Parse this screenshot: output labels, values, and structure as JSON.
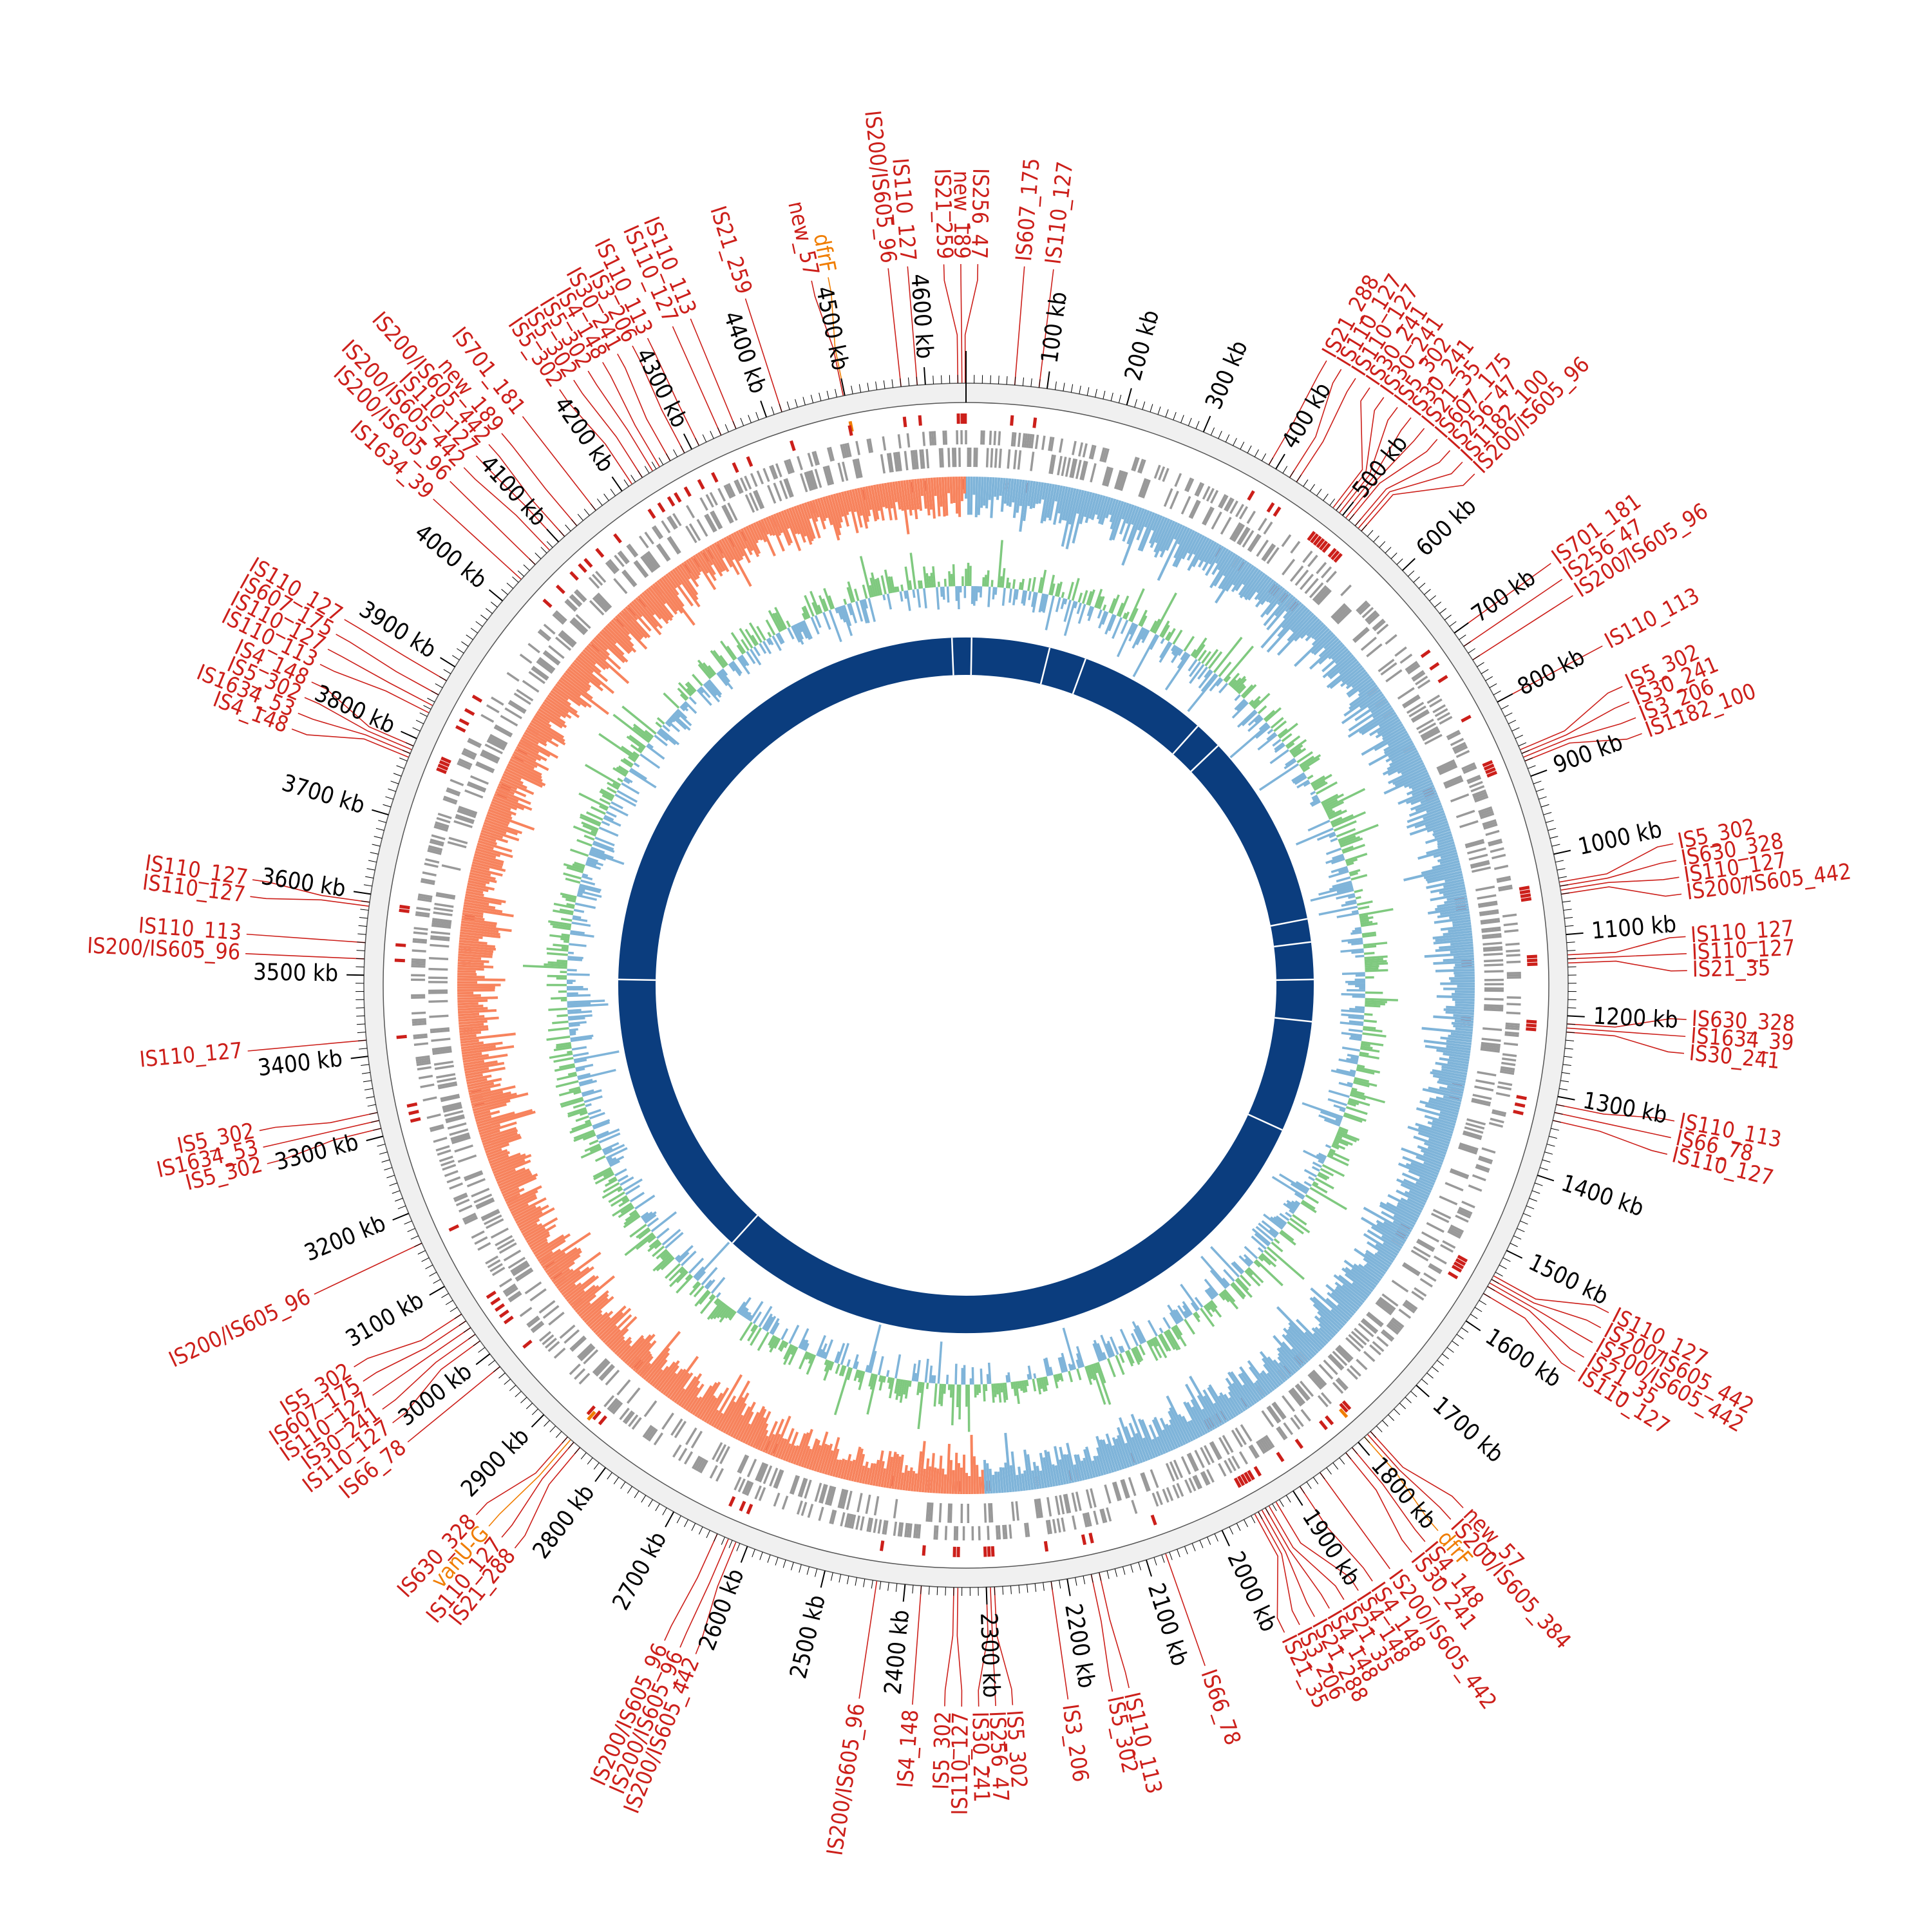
{
  "genome": {
    "length_kb": 4650,
    "scale_tick_major_kb": 100,
    "scale_tick_minor_kb": 10,
    "scale_labels": [
      "100 kb",
      "200 kb",
      "300 kb",
      "400 kb",
      "500 kb",
      "600 kb",
      "700 kb",
      "800 kb",
      "900 kb",
      "1000 kb",
      "1100 kb",
      "1200 kb",
      "1300 kb",
      "1400 kb",
      "1500 kb",
      "1600 kb",
      "1700 kb",
      "1800 kb",
      "1900 kb",
      "2000 kb",
      "2100 kb",
      "2200 kb",
      "2300 kb",
      "2400 kb",
      "2500 kb",
      "2600 kb",
      "2700 kb",
      "2800 kb",
      "2900 kb",
      "3000 kb",
      "3100 kb",
      "3200 kb",
      "3300 kb",
      "3400 kb",
      "3500 kb",
      "3600 kb",
      "3700 kb",
      "3800 kb",
      "3900 kb",
      "4000 kb",
      "4100 kb",
      "4200 kb",
      "4300 kb",
      "4400 kb",
      "4500 kb",
      "4600 kb"
    ]
  },
  "colors": {
    "is_element": "#cc1f1a",
    "resistance_gene": "#f07d00",
    "backbone_ring": "#f0f0f0",
    "cds": "#999999",
    "gc_skew_positive": "#7fb4d9",
    "gc_skew_negative": "#f7835d",
    "gc_content_high": "#7fc97f",
    "gc_content_low": "#7fb4d9",
    "inner_ring": "#0b3d7e"
  },
  "features": [
    {
      "label": "IS256_47",
      "kb": 4649,
      "type": "is"
    },
    {
      "label": "IS21_259",
      "kb": 4640,
      "type": "is"
    },
    {
      "label": "new_189",
      "kb": 4645,
      "type": "is"
    },
    {
      "label": "IS110_127",
      "kb": 4590,
      "type": "is"
    },
    {
      "label": "IS200/IS605_96",
      "kb": 4570,
      "type": "is"
    },
    {
      "label": "dfrF",
      "kb": 4500,
      "type": "res"
    },
    {
      "label": "new_57",
      "kb": 4498,
      "type": "is"
    },
    {
      "label": "IS21_259",
      "kb": 4420,
      "type": "is"
    },
    {
      "label": "IS110_113",
      "kb": 4360,
      "type": "is"
    },
    {
      "label": "IS110_127",
      "kb": 4340,
      "type": "is"
    },
    {
      "label": "IS110_113",
      "kb": 4310,
      "type": "is"
    },
    {
      "label": "IS3_206",
      "kb": 4290,
      "type": "is"
    },
    {
      "label": "IS30_241",
      "kb": 4270,
      "type": "is"
    },
    {
      "label": "IS4_148",
      "kb": 4255,
      "type": "is"
    },
    {
      "label": "IS5_302",
      "kb": 4245,
      "type": "is"
    },
    {
      "label": "IS5_302",
      "kb": 4230,
      "type": "is"
    },
    {
      "label": "IS5_302",
      "kb": 4215,
      "type": "is"
    },
    {
      "label": "IS701_181",
      "kb": 4160,
      "type": "is"
    },
    {
      "label": "new_189",
      "kb": 4130,
      "type": "is"
    },
    {
      "label": "IS200/IS605_442",
      "kb": 4110,
      "type": "is"
    },
    {
      "label": "IS110_127",
      "kb": 4100,
      "type": "is"
    },
    {
      "label": "IS200/IS605_442",
      "kb": 4085,
      "type": "is"
    },
    {
      "label": "IS200/IS605_96",
      "kb": 4060,
      "type": "is"
    },
    {
      "label": "IS1634_39",
      "kb": 4035,
      "type": "is"
    },
    {
      "label": "IS110_127",
      "kb": 3880,
      "type": "is"
    },
    {
      "label": "IS607_175",
      "kb": 3860,
      "type": "is"
    },
    {
      "label": "IS110_127",
      "kb": 3845,
      "type": "is"
    },
    {
      "label": "IS110_113",
      "kb": 3835,
      "type": "is"
    },
    {
      "label": "IS4_148",
      "kb": 3790,
      "type": "is"
    },
    {
      "label": "IS5_302",
      "kb": 3785,
      "type": "is"
    },
    {
      "label": "IS1634_53",
      "kb": 3780,
      "type": "is"
    },
    {
      "label": "IS4_148",
      "kb": 3775,
      "type": "is"
    },
    {
      "label": "IS110_127",
      "kb": 3590,
      "type": "is"
    },
    {
      "label": "IS110_127",
      "kb": 3585,
      "type": "is"
    },
    {
      "label": "IS110_113",
      "kb": 3540,
      "type": "is"
    },
    {
      "label": "IS200/IS605_96",
      "kb": 3520,
      "type": "is"
    },
    {
      "label": "IS110_127",
      "kb": 3420,
      "type": "is"
    },
    {
      "label": "IS5_302",
      "kb": 3330,
      "type": "is"
    },
    {
      "label": "IS1634_53",
      "kb": 3320,
      "type": "is"
    },
    {
      "label": "IS5_302",
      "kb": 3310,
      "type": "is"
    },
    {
      "label": "IS200/IS605_96",
      "kb": 3160,
      "type": "is"
    },
    {
      "label": "IS5_302",
      "kb": 3060,
      "type": "is"
    },
    {
      "label": "IS607_175",
      "kb": 3050,
      "type": "is"
    },
    {
      "label": "IS110_127",
      "kb": 3040,
      "type": "is"
    },
    {
      "label": "IS30_241",
      "kb": 3030,
      "type": "is"
    },
    {
      "label": "IS110_127",
      "kb": 3020,
      "type": "is"
    },
    {
      "label": "IS66_78",
      "kb": 2980,
      "type": "is"
    },
    {
      "label": "IS630_328",
      "kb": 2860,
      "type": "is"
    },
    {
      "label": "vanU-G",
      "kb": 2855,
      "type": "res"
    },
    {
      "label": "IS110_127",
      "kb": 2850,
      "type": "is"
    },
    {
      "label": "IS21_288",
      "kb": 2840,
      "type": "is"
    },
    {
      "label": "IS200/IS605_96",
      "kb": 2640,
      "type": "is"
    },
    {
      "label": "IS200/IS605_96",
      "kb": 2625,
      "type": "is"
    },
    {
      "label": "IS200/IS605_442",
      "kb": 2615,
      "type": "is"
    },
    {
      "label": "IS200/IS605_96",
      "kb": 2435,
      "type": "is"
    },
    {
      "label": "IS4_148",
      "kb": 2380,
      "type": "is"
    },
    {
      "label": "IS5_302",
      "kb": 2340,
      "type": "is"
    },
    {
      "label": "IS110_127",
      "kb": 2335,
      "type": "is"
    },
    {
      "label": "IS30_241",
      "kb": 2300,
      "type": "is"
    },
    {
      "label": "IS256_47",
      "kb": 2295,
      "type": "is"
    },
    {
      "label": "IS5_302",
      "kb": 2290,
      "type": "is"
    },
    {
      "label": "IS3_206",
      "kb": 2220,
      "type": "is"
    },
    {
      "label": "IS5_302",
      "kb": 2170,
      "type": "is"
    },
    {
      "label": "IS110_113",
      "kb": 2160,
      "type": "is"
    },
    {
      "label": "IS66_78",
      "kb": 2075,
      "type": "is"
    },
    {
      "label": "IS21_35",
      "kb": 1955,
      "type": "is"
    },
    {
      "label": "IS3_206",
      "kb": 1950,
      "type": "is"
    },
    {
      "label": "IS21_288",
      "kb": 1945,
      "type": "is"
    },
    {
      "label": "IS4_148",
      "kb": 1940,
      "type": "is"
    },
    {
      "label": "IS21_35",
      "kb": 1935,
      "type": "is"
    },
    {
      "label": "IS4_148",
      "kb": 1925,
      "type": "is"
    },
    {
      "label": "IS4_148",
      "kb": 1890,
      "type": "is"
    },
    {
      "label": "IS200/IS605_442",
      "kb": 1860,
      "type": "is"
    },
    {
      "label": "IS30_241",
      "kb": 1820,
      "type": "is"
    },
    {
      "label": "IS4_148",
      "kb": 1810,
      "type": "is"
    },
    {
      "label": "dfrF",
      "kb": 1790,
      "type": "res"
    },
    {
      "label": "IS200/IS605_384",
      "kb": 1785,
      "type": "is"
    },
    {
      "label": "new_57",
      "kb": 1780,
      "type": "is"
    },
    {
      "label": "IS110_127",
      "kb": 1560,
      "type": "is"
    },
    {
      "label": "IS21_35",
      "kb": 1550,
      "type": "is"
    },
    {
      "label": "IS200/IS605_442",
      "kb": 1545,
      "type": "is"
    },
    {
      "label": "IS200/IS605_442",
      "kb": 1540,
      "type": "is"
    },
    {
      "label": "IS110_127",
      "kb": 1535,
      "type": "is"
    },
    {
      "label": "IS110_127",
      "kb": 1330,
      "type": "is"
    },
    {
      "label": "IS66_78",
      "kb": 1320,
      "type": "is"
    },
    {
      "label": "IS110_113",
      "kb": 1310,
      "type": "is"
    },
    {
      "label": "IS30_241",
      "kb": 1220,
      "type": "is"
    },
    {
      "label": "IS1634_39",
      "kb": 1215,
      "type": "is"
    },
    {
      "label": "IS630_328",
      "kb": 1210,
      "type": "is"
    },
    {
      "label": "IS21_35",
      "kb": 1135,
      "type": "is"
    },
    {
      "label": "IS110_127",
      "kb": 1130,
      "type": "is"
    },
    {
      "label": "IS110_127",
      "kb": 1125,
      "type": "is"
    },
    {
      "label": "IS200/IS605_442",
      "kb": 1050,
      "type": "is"
    },
    {
      "label": "IS110_127",
      "kb": 1045,
      "type": "is"
    },
    {
      "label": "IS630_328",
      "kb": 1040,
      "type": "is"
    },
    {
      "label": "IS5_302",
      "kb": 1035,
      "type": "is"
    },
    {
      "label": "IS1182_100",
      "kb": 880,
      "type": "is"
    },
    {
      "label": "IS3_206",
      "kb": 875,
      "type": "is"
    },
    {
      "label": "IS30_241",
      "kb": 870,
      "type": "is"
    },
    {
      "label": "IS5_302",
      "kb": 865,
      "type": "is"
    },
    {
      "label": "IS110_113",
      "kb": 800,
      "type": "is"
    },
    {
      "label": "IS200/IS605_96",
      "kb": 740,
      "type": "is"
    },
    {
      "label": "IS256_47",
      "kb": 720,
      "type": "is"
    },
    {
      "label": "IS701_181",
      "kb": 700,
      "type": "is"
    },
    {
      "label": "IS200/IS605_96",
      "kb": 530,
      "type": "is"
    },
    {
      "label": "IS1182_100",
      "kb": 525,
      "type": "is"
    },
    {
      "label": "IS256_47",
      "kb": 520,
      "type": "is"
    },
    {
      "label": "IS607_175",
      "kb": 510,
      "type": "is"
    },
    {
      "label": "IS21_35",
      "kb": 505,
      "type": "is"
    },
    {
      "label": "IS30_241",
      "kb": 500,
      "type": "is"
    },
    {
      "label": "IS5_302",
      "kb": 495,
      "type": "is"
    },
    {
      "label": "IS30_241",
      "kb": 490,
      "type": "is"
    },
    {
      "label": "IS30_241",
      "kb": 485,
      "type": "is"
    },
    {
      "label": "IS110_127",
      "kb": 430,
      "type": "is"
    },
    {
      "label": "IS110_127",
      "kb": 420,
      "type": "is"
    },
    {
      "label": "IS21_288",
      "kb": 390,
      "type": "is"
    },
    {
      "label": "IS110_127",
      "kb": 90,
      "type": "is"
    },
    {
      "label": "IS607_175",
      "kb": 60,
      "type": "is"
    }
  ]
}
